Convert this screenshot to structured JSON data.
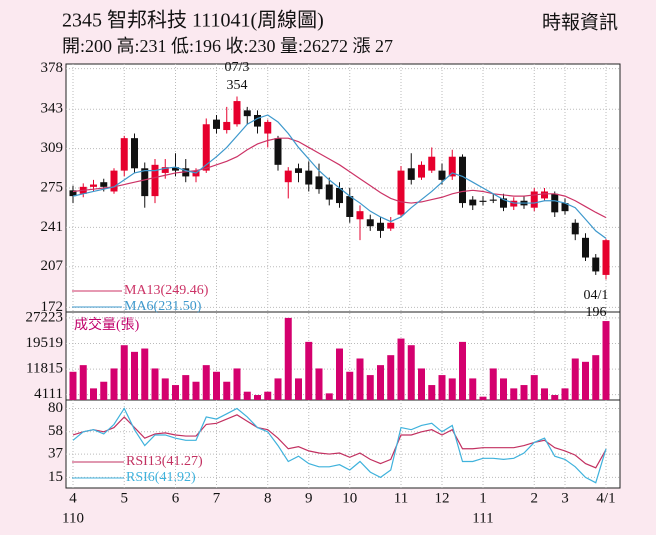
{
  "chart_data": {
    "type": "candlestick",
    "title": "2345  智邦科技 111041(周線圖)",
    "source": "時報資訊",
    "info": "開:200 高:231 低:196 收:230 量:26272 漲 27",
    "categories": [
      "4",
      null,
      null,
      null,
      null,
      "5",
      null,
      null,
      null,
      null,
      "6",
      null,
      null,
      null,
      "7",
      null,
      null,
      null,
      null,
      "8",
      null,
      null,
      null,
      "9",
      null,
      null,
      null,
      "10",
      null,
      null,
      null,
      null,
      "11",
      null,
      null,
      null,
      "12",
      null,
      null,
      null,
      "1",
      null,
      null,
      null,
      null,
      "2",
      null,
      null,
      "3",
      null,
      null,
      null,
      "4/1"
    ],
    "x_sublabels": [
      "110",
      null,
      null,
      null,
      null,
      null,
      null,
      null,
      null,
      null,
      null,
      null,
      null,
      null,
      null,
      null,
      null,
      null,
      null,
      null,
      null,
      null,
      null,
      null,
      null,
      null,
      null,
      null,
      null,
      null,
      null,
      null,
      null,
      null,
      null,
      null,
      null,
      null,
      null,
      null,
      "111",
      null,
      null,
      null,
      null,
      null,
      null,
      null,
      null,
      null,
      null,
      null,
      null
    ],
    "open": [
      273,
      270,
      276,
      280,
      272,
      290,
      318,
      292,
      268,
      288,
      293,
      292,
      285,
      290,
      334,
      325,
      330,
      342,
      338,
      322,
      318,
      280,
      292,
      290,
      285,
      278,
      275,
      268,
      248,
      248,
      245,
      240,
      252,
      292,
      284,
      290,
      290,
      285,
      302,
      265,
      264,
      265,
      266,
      259,
      264,
      258,
      266,
      270,
      262,
      245,
      232,
      215,
      200
    ],
    "high": [
      277,
      279,
      282,
      283,
      292,
      320,
      322,
      297,
      300,
      300,
      305,
      300,
      292,
      335,
      338,
      345,
      354,
      345,
      342,
      334,
      320,
      293,
      296,
      298,
      296,
      284,
      280,
      275,
      260,
      252,
      250,
      250,
      294,
      305,
      298,
      310,
      296,
      308,
      304,
      268,
      268,
      270,
      270,
      267,
      268,
      275,
      275,
      272,
      266,
      248,
      236,
      218,
      231
    ],
    "low": [
      262,
      267,
      272,
      272,
      270,
      285,
      288,
      258,
      262,
      283,
      285,
      280,
      280,
      288,
      322,
      322,
      328,
      330,
      322,
      310,
      290,
      266,
      280,
      272,
      270,
      260,
      258,
      245,
      230,
      238,
      232,
      238,
      250,
      278,
      282,
      288,
      278,
      282,
      258,
      256,
      260,
      262,
      255,
      256,
      257,
      255,
      264,
      250,
      252,
      230,
      212,
      200,
      196
    ],
    "close": [
      268,
      276,
      278,
      276,
      290,
      318,
      292,
      268,
      295,
      293,
      290,
      285,
      290,
      330,
      326,
      332,
      350,
      337,
      328,
      332,
      295,
      290,
      288,
      278,
      274,
      265,
      262,
      250,
      255,
      242,
      238,
      245,
      290,
      282,
      295,
      302,
      282,
      302,
      262,
      260,
      263,
      264,
      258,
      264,
      260,
      272,
      272,
      254,
      255,
      235,
      215,
      203,
      230
    ],
    "up_color": "#e6002d",
    "down_color": "#111111",
    "ylim": [
      168,
      382
    ],
    "yticks": [
      172,
      207,
      241,
      275,
      309,
      343,
      378
    ],
    "grid": true,
    "series": [
      {
        "name": "MA13(249.46)",
        "color": "#cc3366",
        "values": [
          272,
          273,
          274,
          275,
          276,
          278,
          280,
          282,
          284,
          286,
          288,
          289,
          290,
          292,
          295,
          298,
          302,
          308,
          313,
          316,
          318,
          318,
          315,
          310,
          305,
          300,
          295,
          289,
          283,
          277,
          271,
          266,
          263,
          262,
          263,
          265,
          267,
          270,
          272,
          273,
          272,
          270,
          269,
          268,
          268,
          269,
          270,
          270,
          268,
          264,
          259,
          254,
          249.46
        ]
      },
      {
        "name": "MA6(231.50)",
        "color": "#3d98cc",
        "values": [
          268,
          270,
          272,
          274,
          276,
          282,
          288,
          290,
          290,
          292,
          293,
          290,
          288,
          295,
          302,
          310,
          320,
          330,
          335,
          338,
          332,
          322,
          310,
          300,
          290,
          282,
          275,
          268,
          262,
          255,
          250,
          246,
          250,
          258,
          265,
          272,
          280,
          288,
          285,
          280,
          275,
          270,
          265,
          262,
          262,
          262,
          264,
          264,
          262,
          258,
          248,
          238,
          231.5
        ]
      }
    ],
    "high_label": {
      "date": "07/3",
      "value": 354
    },
    "low_label": {
      "date": "04/1",
      "value": 196
    },
    "volume": {
      "label": "成交量(張)",
      "color": "#d4006e",
      "values": [
        11000,
        13000,
        6000,
        8000,
        12000,
        19000,
        17000,
        18000,
        12000,
        9000,
        7000,
        10000,
        8000,
        13000,
        11000,
        8000,
        12000,
        5000,
        4000,
        5000,
        9000,
        27223,
        9000,
        20000,
        12000,
        4500,
        18000,
        11000,
        15000,
        10000,
        13000,
        16000,
        21000,
        19000,
        12000,
        7000,
        10000,
        9000,
        20000,
        9000,
        3500,
        12000,
        9000,
        6000,
        7000,
        10000,
        6000,
        4000,
        6000,
        15000,
        14000,
        16000,
        26272
      ],
      "ylim": [
        2500,
        29000
      ],
      "yticks": [
        4111,
        11815,
        19519,
        27223
      ]
    },
    "rsi": {
      "ylim": [
        5,
        88
      ],
      "yticks": [
        15,
        37,
        58,
        80
      ],
      "series": [
        {
          "name": "RSI13(41.27)",
          "color": "#c23060",
          "values": [
            55,
            58,
            60,
            58,
            62,
            72,
            62,
            52,
            56,
            57,
            55,
            54,
            54,
            65,
            66,
            70,
            74,
            68,
            62,
            60,
            52,
            42,
            44,
            40,
            38,
            37,
            38,
            34,
            38,
            32,
            28,
            32,
            55,
            55,
            58,
            60,
            55,
            60,
            42,
            42,
            43,
            43,
            43,
            43,
            45,
            48,
            50,
            43,
            40,
            36,
            28,
            24,
            41.27
          ]
        },
        {
          "name": "RSI6(41.92)",
          "color": "#3fb2dc",
          "values": [
            50,
            58,
            60,
            56,
            65,
            80,
            60,
            45,
            55,
            55,
            52,
            50,
            50,
            72,
            70,
            75,
            80,
            72,
            62,
            58,
            45,
            30,
            35,
            28,
            25,
            25,
            27,
            22,
            30,
            20,
            15,
            22,
            62,
            60,
            64,
            66,
            58,
            64,
            30,
            30,
            33,
            33,
            32,
            33,
            38,
            48,
            52,
            35,
            32,
            25,
            15,
            10,
            41.92
          ]
        }
      ]
    }
  }
}
